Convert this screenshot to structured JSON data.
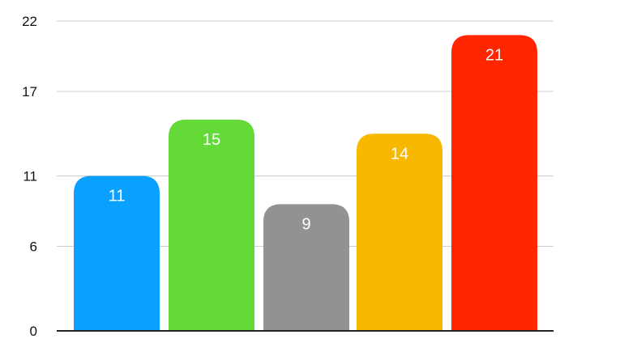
{
  "chart_data": {
    "type": "bar",
    "categories": [
      "",
      "",
      "",
      "",
      ""
    ],
    "values": [
      11,
      15,
      9,
      14,
      21
    ],
    "data_labels": [
      "11",
      "15",
      "9",
      "14",
      "21"
    ],
    "colors": [
      "#0aa0ff",
      "#63da38",
      "#929292",
      "#f8b800",
      "#ff2600"
    ],
    "yticks": [
      0,
      6,
      11,
      17,
      22
    ],
    "ytick_labels": [
      "0",
      "6",
      "11",
      "17",
      "22"
    ],
    "ylim": [
      0,
      22
    ],
    "grid": true,
    "title": "",
    "xlabel": "",
    "ylabel": ""
  }
}
